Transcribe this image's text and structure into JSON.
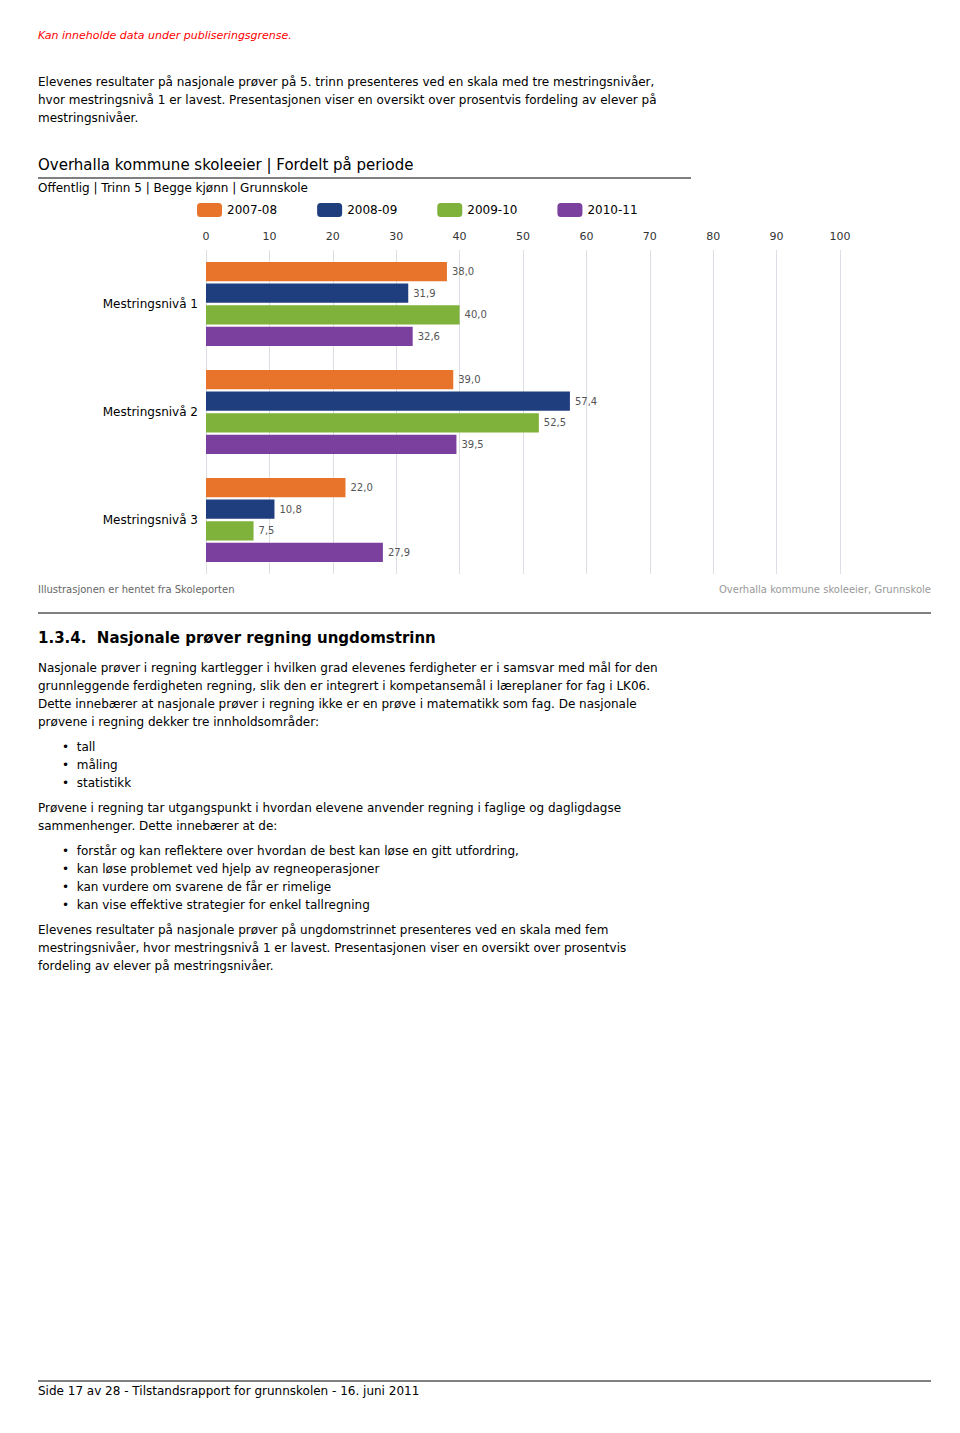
{
  "page": {
    "warning": {
      "text": "Kan inneholde data under publiseringsgrense.",
      "color": "#ff0000"
    },
    "intro_lines": [
      "Elevenes resultater på nasjonale prøver på 5. trinn presenteres ved en skala med tre mestringsnivåer,",
      "hvor mestringsnivå 1 er lavest. Presentasjonen viser en oversikt over prosentvis fordeling av elever på",
      "mestringsnivåer."
    ],
    "source_left": "Illustrasjonen er hentet fra Skoleporten",
    "source_right": "Overhalla kommune skoleeier, Grunnskole",
    "heading": "1.3.4.  Nasjonale prøver regning ungdomstrinn",
    "body": [
      {
        "lines": [
          "Nasjonale prøver i regning kartlegger i hvilken grad elevenes ferdigheter er i samsvar med mål for den",
          "grunnleggende ferdigheten regning, slik den er integrert i kompetansemål i læreplaner for fag i LK06.",
          "Dette innebærer at nasjonale prøver i regning ikke er en prøve i matematikk som fag. De nasjonale",
          "prøvene i regning dekker tre innholdsområder:"
        ]
      },
      {
        "bullets": [
          "•  tall",
          "•  måling",
          "•  statistikk"
        ]
      },
      {
        "lines": [
          "Prøvene i regning tar utgangspunkt i hvordan elevene anvender regning i faglige og dagligdagse",
          "sammenhenger. Dette innebærer at de:"
        ]
      },
      {
        "bullets": [
          "•  forstår og kan reflektere over hvordan de best kan løse en gitt utfordring,",
          "•  kan løse problemet ved hjelp av regneoperasjoner",
          "•  kan vurdere om svarene de får er rimelige",
          "•  kan vise effektive strategier for enkel tallregning"
        ]
      },
      {
        "lines": [
          "Elevenes resultater på nasjonale prøver på ungdomstrinnet presenteres ved en skala med fem",
          "mestringsnivåer, hvor mestringsnivå 1 er lavest. Presentasjonen viser en oversikt over prosentvis",
          "fordeling av elever på mestringsnivåer."
        ]
      }
    ],
    "footer": "Side 17 av 28 - Tilstandsrapport for grunnskolen - 16. juni 2011"
  },
  "chart_data": {
    "type": "bar",
    "orientation": "horizontal",
    "title": "Overhalla kommune skoleeier | Fordelt på periode",
    "subtitle": "Offentlig | Trinn 5 | Begge kjønn | Grunnskole",
    "categories": [
      "Mestringsnivå 1",
      "Mestringsnivå 2",
      "Mestringsnivå 3"
    ],
    "series": [
      {
        "name": "2007-08",
        "color": "#E8732A",
        "values": [
          38.0,
          39.0,
          22.0
        ],
        "value_labels": [
          "38,0",
          "39,0",
          "22,0"
        ]
      },
      {
        "name": "2008-09",
        "color": "#1F3E7E",
        "values": [
          31.9,
          57.4,
          10.8
        ],
        "value_labels": [
          "31,9",
          "57,4",
          "10,8"
        ]
      },
      {
        "name": "2009-10",
        "color": "#7FB23A",
        "values": [
          40.0,
          52.5,
          7.5
        ],
        "value_labels": [
          "40,0",
          "52,5",
          "7,5"
        ]
      },
      {
        "name": "2010-11",
        "color": "#7B3F9E",
        "values": [
          32.6,
          39.5,
          27.9
        ],
        "value_labels": [
          "32,6",
          "39,5",
          "27,9"
        ]
      }
    ],
    "xlim": [
      0,
      100
    ],
    "xticks": [
      0,
      10,
      20,
      30,
      40,
      50,
      60,
      70,
      80,
      90,
      100
    ],
    "grid": true,
    "legend": "top",
    "data_labels": true
  }
}
